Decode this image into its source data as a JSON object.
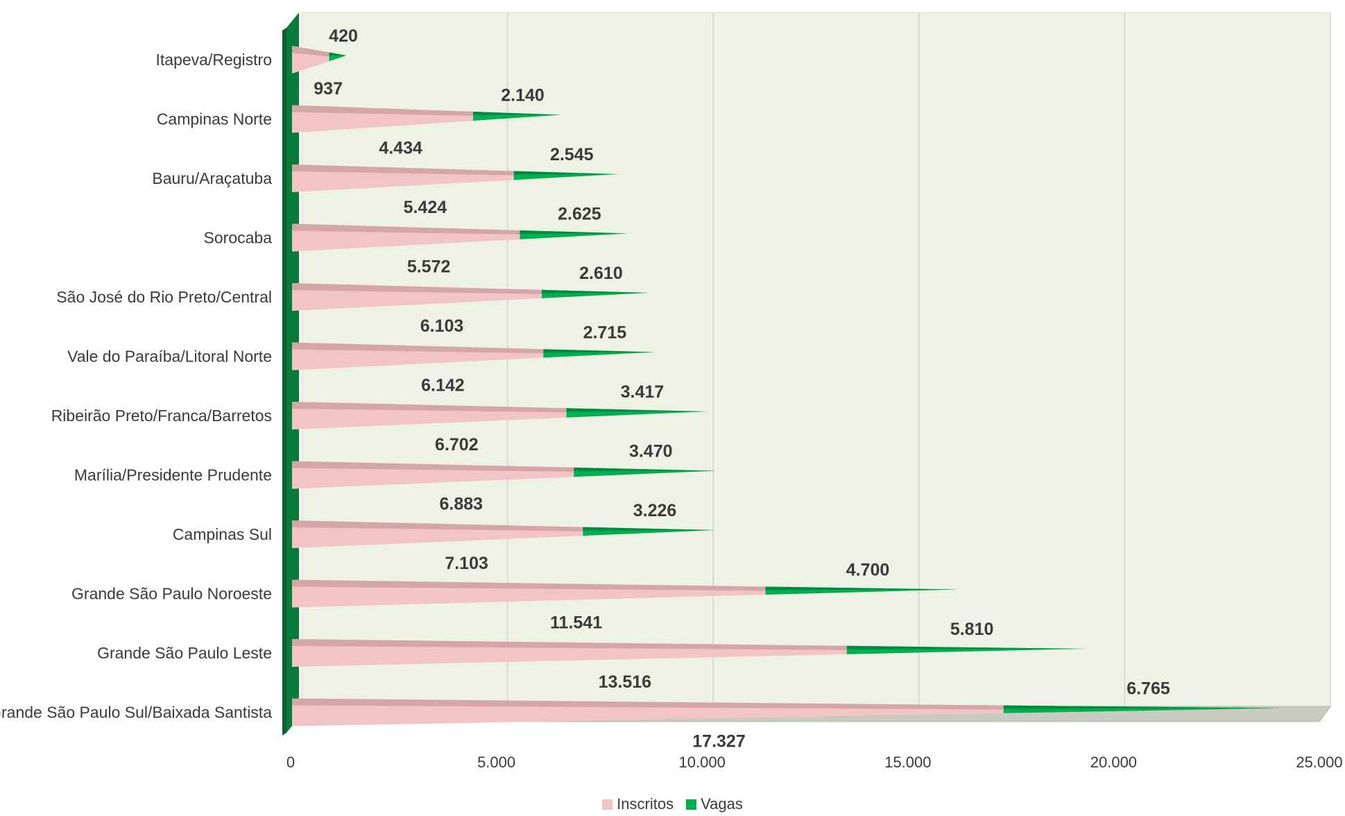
{
  "chart_data": {
    "type": "bar",
    "orientation": "horizontal",
    "stacked": true,
    "categories": [
      "Itapeva/Registro",
      "Campinas Norte",
      "Bauru/Araçatuba",
      "Sorocaba",
      "São José do Rio Preto/Central",
      "Vale do Paraíba/Litoral Norte",
      "Ribeirão Preto/Franca/Barretos",
      "Marília/Presidente Prudente",
      "Campinas Sul",
      "Grande São Paulo Noroeste",
      "Grande São Paulo Leste",
      "Grande São Paulo Sul/Baixada Santista"
    ],
    "series": [
      {
        "name": "Inscritos",
        "color": "#f2c4c4",
        "values": [
          937,
          4434,
          5424,
          5572,
          6103,
          6142,
          6702,
          6883,
          7103,
          11541,
          13516,
          17327
        ],
        "labels": [
          "937",
          "4.434",
          "5.424",
          "5.572",
          "6.103",
          "6.142",
          "6.702",
          "6.883",
          "7.103",
          "11.541",
          "13.516",
          "17.327"
        ]
      },
      {
        "name": "Vagas",
        "color": "#00b050",
        "values": [
          420,
          2140,
          2545,
          2625,
          2610,
          2715,
          3417,
          3470,
          3226,
          4700,
          5810,
          6765
        ],
        "labels": [
          "420",
          "2.140",
          "2.545",
          "2.625",
          "2.610",
          "2.715",
          "3.417",
          "3.470",
          "3.226",
          "4.700",
          "5.810",
          "6.765"
        ]
      }
    ],
    "xlim": [
      0,
      25000
    ],
    "xticks": [
      0,
      5000,
      10000,
      15000,
      20000,
      25000
    ],
    "xtick_labels": [
      "0",
      "5.000",
      "10.000",
      "15.000",
      "20.000",
      "25.000"
    ],
    "grid": true,
    "legend_position": "bottom-center",
    "title": "",
    "xlabel": "",
    "ylabel": ""
  }
}
